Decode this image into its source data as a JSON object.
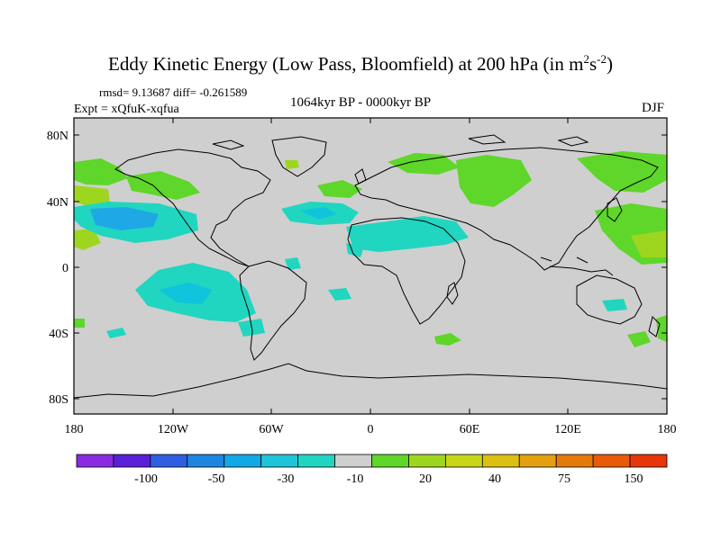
{
  "title": {
    "main": "Eddy Kinetic Energy (Low Pass, Bloomfield) at 200 hPa (in m",
    "sup1": "2",
    "mid": "s",
    "sup2": "-2",
    "end": ")"
  },
  "stats": {
    "rmsd_line": "rmsd= 9.13687 diff= -0.261589",
    "expt_line": "Expt = xQfuK-xqfua"
  },
  "period": "1064kyr BP - 0000kyr BP",
  "season": "DJF",
  "lat_labels": [
    "80N",
    "40N",
    "0",
    "40S",
    "80S"
  ],
  "lon_labels": [
    "180",
    "120W",
    "60W",
    "0",
    "60E",
    "120E",
    "180"
  ],
  "colorbar": {
    "colors": [
      "#8a2be2",
      "#5a20d8",
      "#2f5fe0",
      "#1f86e0",
      "#10a8e6",
      "#20c4d8",
      "#20d6c0",
      "#cfcfcf",
      "#5fd62a",
      "#9ed61f",
      "#c8d61a",
      "#dcbf12",
      "#e4a010",
      "#e57a0c",
      "#e85a06",
      "#e8360a"
    ],
    "labels": [
      "-100",
      "-50",
      "-30",
      "-10",
      "20",
      "40",
      "75",
      "150"
    ]
  },
  "legend_colors": {
    "land_background": "#cfcfcf",
    "neg_light": "#20d6c0",
    "neg_medium": "#10c4dc",
    "neg_strong": "#1fa8e6",
    "pos_light": "#5fd62a",
    "pos_medium": "#9ed61f"
  }
}
